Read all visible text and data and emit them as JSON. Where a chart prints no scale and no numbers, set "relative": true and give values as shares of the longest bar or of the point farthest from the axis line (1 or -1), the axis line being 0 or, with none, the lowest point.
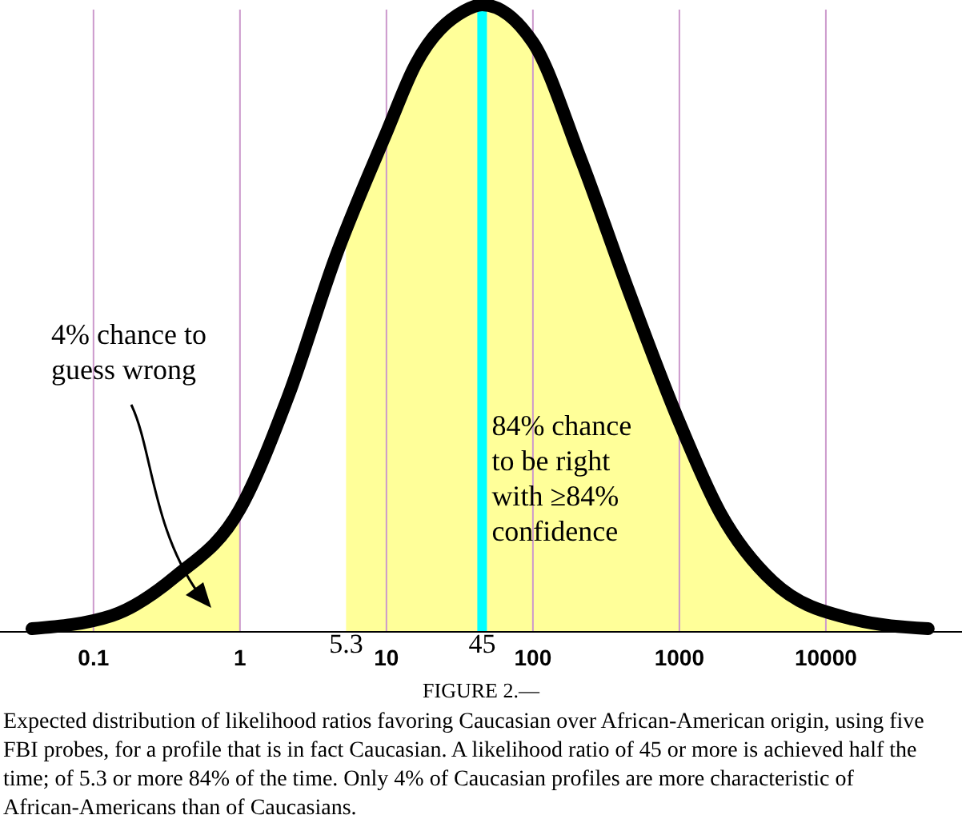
{
  "chart_data": {
    "type": "line",
    "relative": true,
    "xlim": [
      0.023,
      85000
    ],
    "log": "x",
    "grid": "x",
    "xticks": [
      0.1,
      1,
      10,
      100,
      1000,
      10000
    ],
    "series": [
      {
        "color": "#000000",
        "x": [
          0.038,
          0.134,
          0.366,
          1,
          2.13,
          4.53,
          10,
          15.9,
          33.9,
          45,
          100,
          213,
          455,
          960,
          1900,
          4360,
          15400,
          50000
        ],
        "values": [
          0.005,
          0.026,
          0.089,
          0.196,
          0.375,
          0.6,
          0.796,
          0.906,
          0.99,
          1,
          0.94,
          0.753,
          0.541,
          0.344,
          0.19,
          0.08,
          0.02,
          0.005
        ]
      }
    ],
    "bands": [
      {
        "axis": "x",
        "from": 0.038,
        "to": 1,
        "color": "#ffff99"
      },
      {
        "axis": "x",
        "from": 5.3,
        "to": 50000,
        "color": "#ffff99",
        "label": "5.3"
      }
    ],
    "ref_lines": [
      {
        "axis": "x",
        "value": 45,
        "color": "#00ffff",
        "label": "45"
      }
    ],
    "annotations": [
      "4% chance to guess wrong",
      "84% chance to be right with ≥84% confidence",
      "FIGURE 2.—",
      "Expected distribution of likelihood ratios favoring Caucasian over African-American origin, using five FBI probes, for a profile that is in fact Caucasian. A likelihood ratio of 45 or more is achieved half the time; of 5.3 or more 84% of the time. Only 4% of Caucasian profiles are more characteristic of African-Americans than of Caucasians."
    ]
  }
}
